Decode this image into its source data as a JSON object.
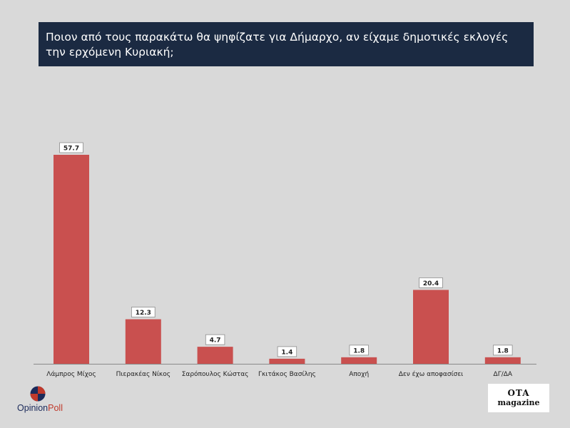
{
  "title": "Ποιον από τους παρακάτω θα ψηφίζατε για Δήμαρχο, αν είχαμε δημοτικές εκλογές την ερχόμενη Κυριακή;",
  "chart_data": {
    "type": "bar",
    "categories": [
      "Λάμπρος Μίχος",
      "Πιερακέας Νίκος",
      "Σαρόπουλος Κώστας",
      "Γκιτάκος Βασίλης",
      "Αποχή",
      "Δεν έχω αποφασίσει",
      "ΔΓ/ΔΑ"
    ],
    "values": [
      57.7,
      12.3,
      4.7,
      1.4,
      1.8,
      20.4,
      1.8
    ],
    "data_labels": [
      "57.7",
      "12.3",
      "4.7",
      "1.4",
      "1.8",
      "20.4",
      "1.8"
    ],
    "ylim": [
      0,
      57.7
    ],
    "grid": false,
    "bar_color": "#c9504f"
  },
  "logos": {
    "opinion_poll_a": "Opinion",
    "opinion_poll_b": "Poll",
    "ota_line1": "OTA",
    "ota_line2": "magazine"
  }
}
